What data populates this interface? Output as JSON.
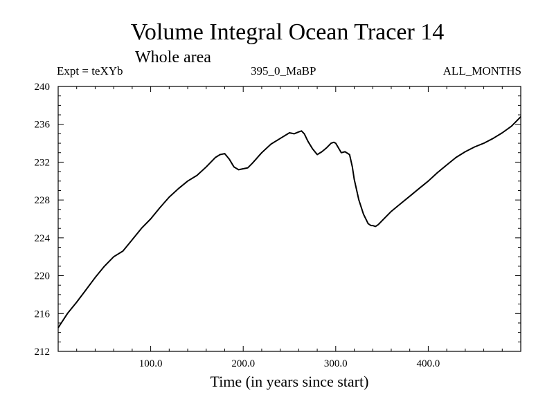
{
  "header": {
    "title": "Volume Integral Ocean Tracer 14",
    "subtitle": "Whole area",
    "left_label": "Expt = teXYb",
    "center_label": "395_0_MaBP",
    "right_label": "ALL_MONTHS"
  },
  "chart_data": {
    "type": "line",
    "title": "Volume Integral Ocean Tracer 14",
    "subtitle": "Whole area",
    "xlabel": "Time (in years since start)",
    "ylabel": "",
    "xlim": [
      0,
      500
    ],
    "ylim": [
      212,
      240
    ],
    "x_ticks": [
      100,
      200,
      300,
      400
    ],
    "x_tick_labels": [
      "100.0",
      "200.0",
      "300.0",
      "400.0"
    ],
    "y_ticks": [
      212,
      216,
      220,
      224,
      228,
      232,
      236,
      240
    ],
    "y_tick_labels": [
      "212",
      "216",
      "220",
      "224",
      "228",
      "232",
      "236",
      "240"
    ],
    "grid": false,
    "series": [
      {
        "color": "#000000",
        "x": [
          0,
          10,
          20,
          30,
          40,
          50,
          60,
          70,
          80,
          90,
          100,
          110,
          120,
          130,
          140,
          150,
          160,
          170,
          175,
          180,
          185,
          190,
          195,
          200,
          205,
          210,
          220,
          230,
          240,
          250,
          255,
          260,
          263,
          266,
          270,
          275,
          280,
          285,
          290,
          295,
          298,
          300,
          303,
          306,
          310,
          315,
          318,
          320,
          325,
          330,
          335,
          338,
          340,
          343,
          346,
          350,
          360,
          370,
          380,
          390,
          400,
          410,
          420,
          430,
          440,
          450,
          460,
          470,
          480,
          490,
          500
        ],
        "y": [
          214.5,
          216.0,
          217.2,
          218.5,
          219.8,
          221.0,
          222.0,
          222.6,
          223.8,
          225.0,
          226.0,
          227.2,
          228.3,
          229.2,
          230.0,
          230.6,
          231.5,
          232.5,
          232.8,
          232.9,
          232.3,
          231.5,
          231.2,
          231.3,
          231.4,
          231.9,
          233.0,
          233.9,
          234.5,
          235.1,
          235.0,
          235.2,
          235.3,
          235.0,
          234.2,
          233.4,
          232.8,
          233.1,
          233.5,
          234.0,
          234.1,
          234.0,
          233.5,
          233.0,
          233.1,
          232.8,
          231.5,
          230.2,
          228.0,
          226.5,
          225.5,
          225.3,
          225.3,
          225.2,
          225.4,
          225.8,
          226.8,
          227.6,
          228.4,
          229.2,
          230.0,
          230.9,
          231.7,
          232.5,
          233.1,
          233.6,
          234.0,
          234.5,
          235.1,
          235.8,
          236.8
        ]
      }
    ]
  }
}
